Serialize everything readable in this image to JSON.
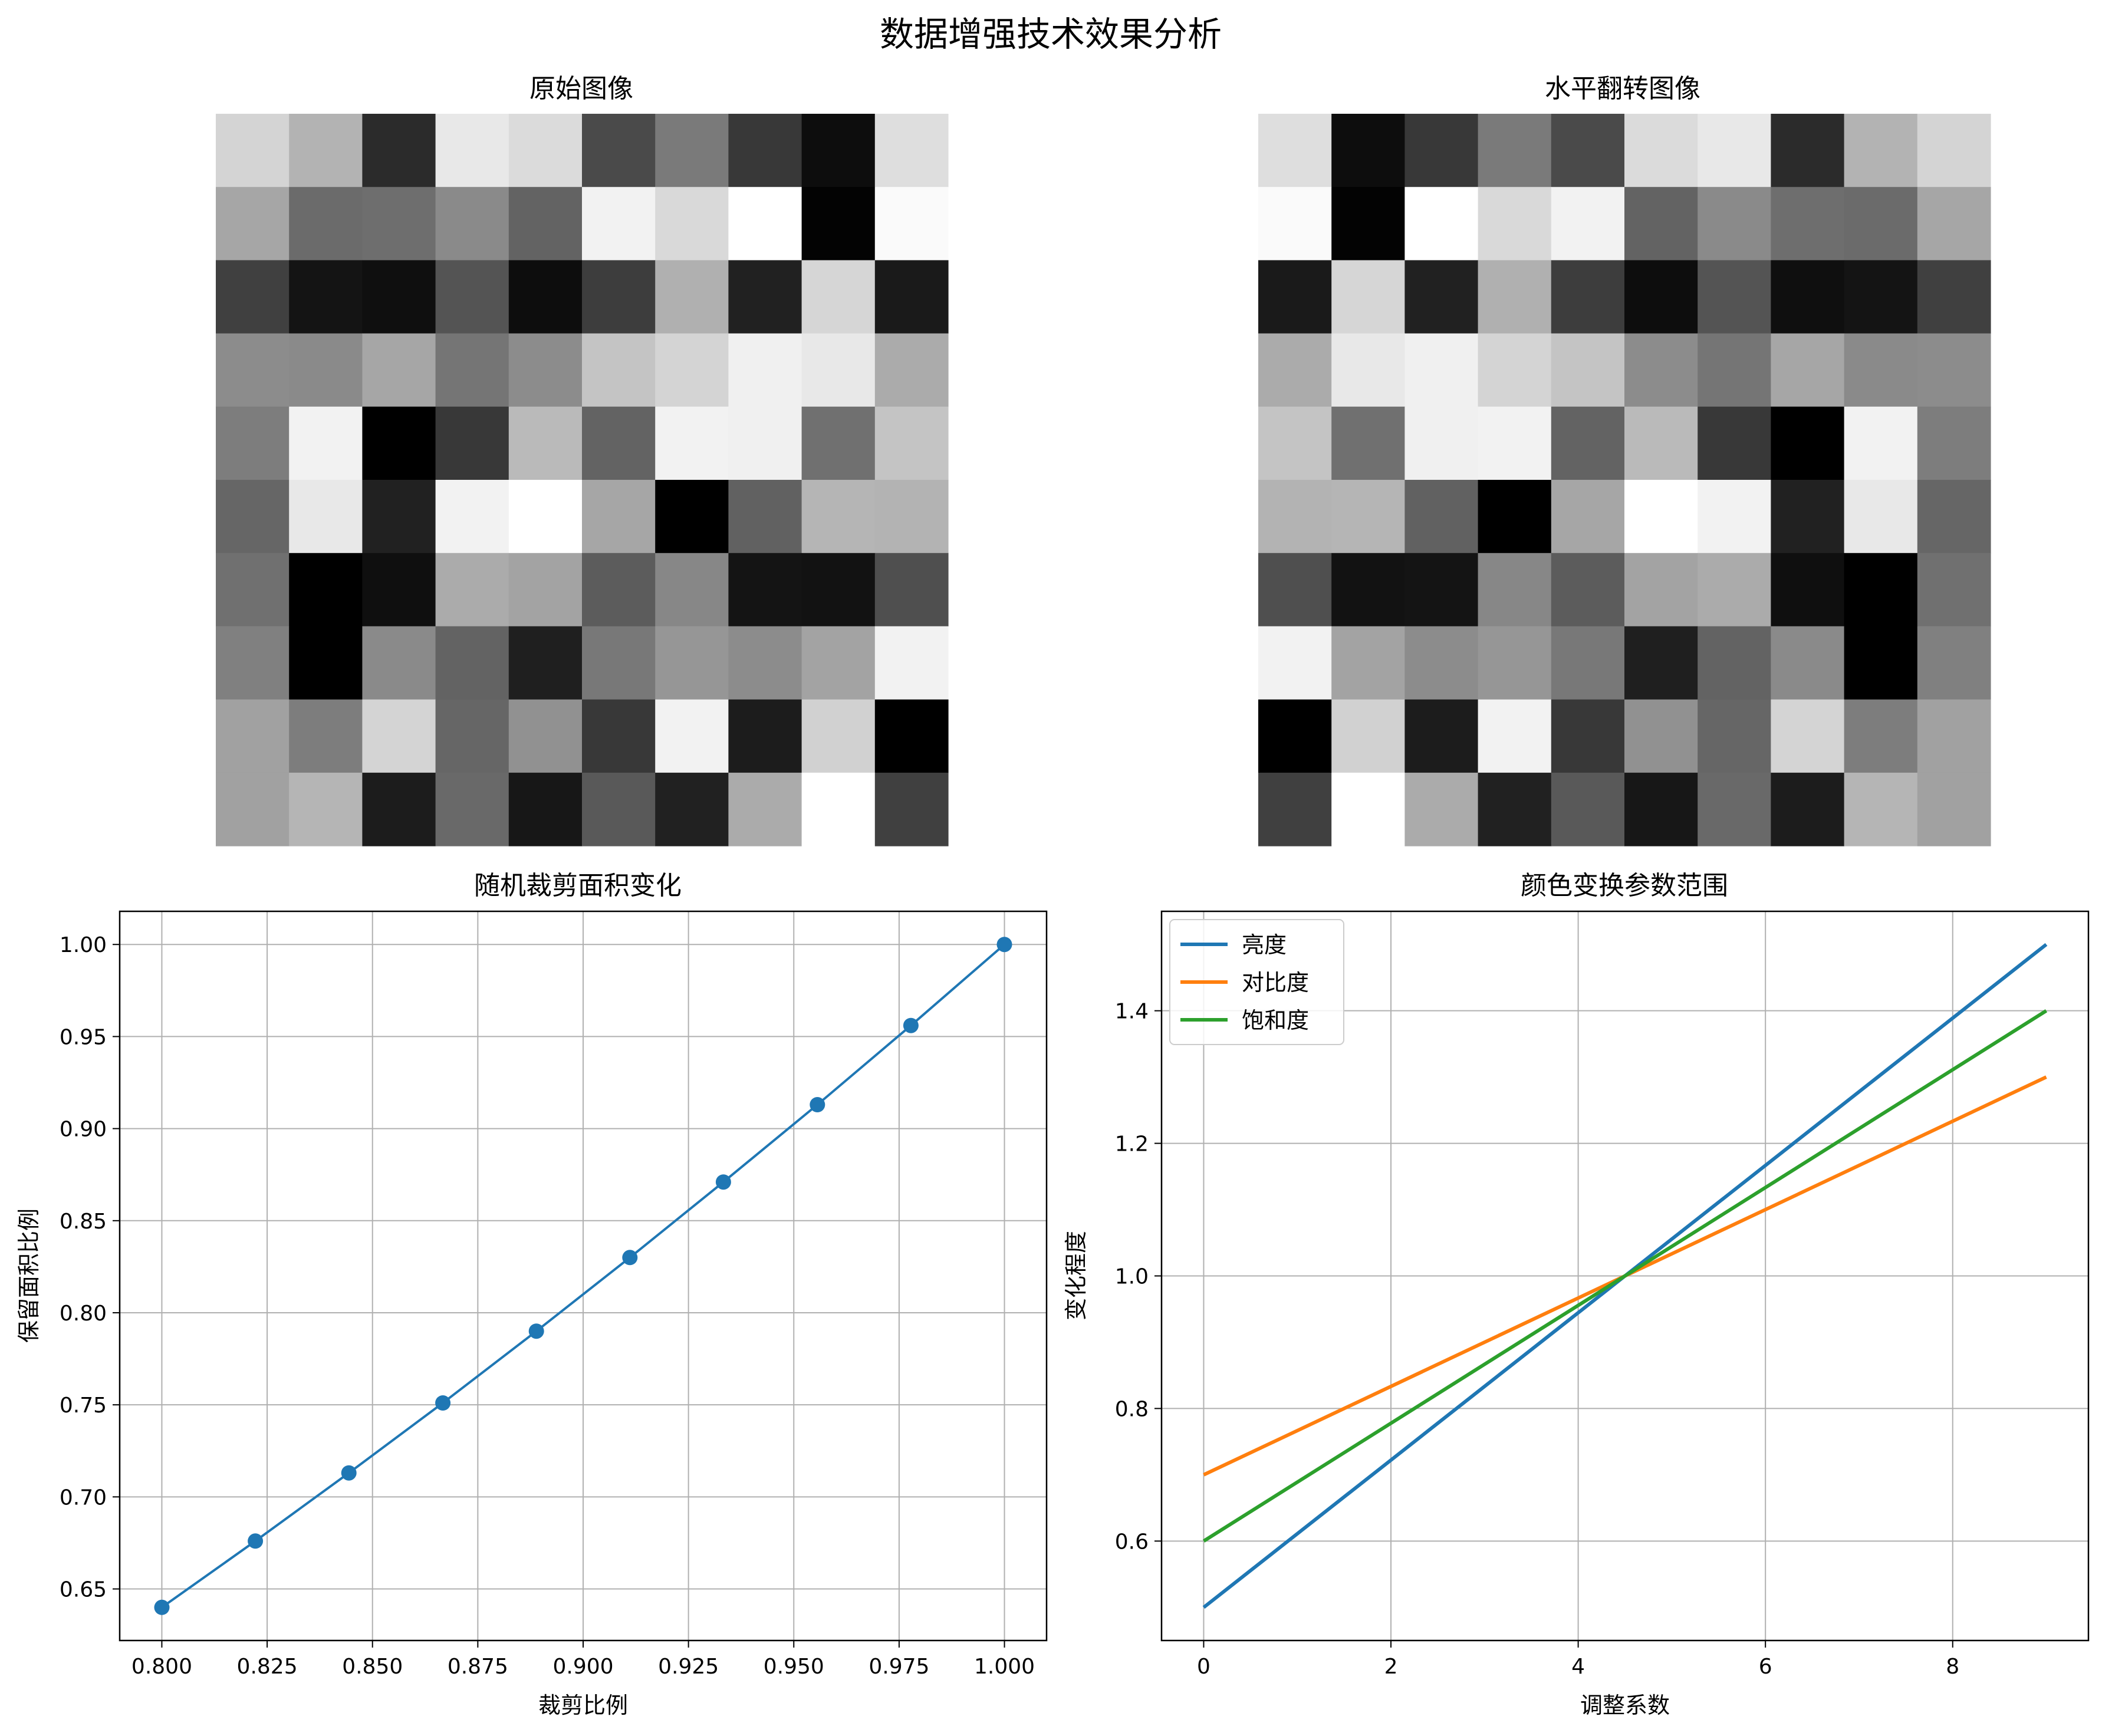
{
  "figure": {
    "title": "数据增强技术效果分析"
  },
  "colors": {
    "blue": "#1f77b4",
    "orange": "#ff7f0e",
    "green": "#2ca02c",
    "grid": "#b0b0b0"
  },
  "chart_data": [
    {
      "type": "heatmap",
      "title": "原始图像",
      "colormap": "gray",
      "axes": "off",
      "rows": 10,
      "cols": 10,
      "values": [
        [
          0.83,
          0.7,
          0.17,
          0.91,
          0.86,
          0.29,
          0.48,
          0.22,
          0.05,
          0.87
        ],
        [
          0.65,
          0.42,
          0.43,
          0.54,
          0.39,
          0.95,
          0.85,
          1.0,
          0.01,
          0.98
        ],
        [
          0.25,
          0.08,
          0.06,
          0.33,
          0.05,
          0.24,
          0.69,
          0.13,
          0.84,
          0.1
        ],
        [
          0.55,
          0.54,
          0.65,
          0.46,
          0.55,
          0.77,
          0.83,
          0.94,
          0.91,
          0.67
        ],
        [
          0.49,
          0.95,
          0.0,
          0.22,
          0.73,
          0.39,
          0.95,
          0.94,
          0.44,
          0.77
        ],
        [
          0.4,
          0.91,
          0.13,
          0.95,
          1.0,
          0.65,
          0.0,
          0.38,
          0.71,
          0.7
        ],
        [
          0.44,
          0.0,
          0.06,
          0.67,
          0.64,
          0.36,
          0.53,
          0.08,
          0.07,
          0.31
        ],
        [
          0.5,
          0.0,
          0.54,
          0.39,
          0.12,
          0.47,
          0.59,
          0.55,
          0.64,
          0.95
        ],
        [
          0.63,
          0.49,
          0.83,
          0.4,
          0.57,
          0.22,
          0.95,
          0.11,
          0.82,
          0.0
        ],
        [
          0.63,
          0.71,
          0.11,
          0.41,
          0.09,
          0.35,
          0.13,
          0.67,
          1.0,
          0.25
        ]
      ]
    },
    {
      "type": "heatmap",
      "title": "水平翻转图像",
      "colormap": "gray",
      "axes": "off",
      "rows": 10,
      "cols": 10,
      "values": [
        [
          0.87,
          0.05,
          0.22,
          0.48,
          0.29,
          0.86,
          0.91,
          0.17,
          0.7,
          0.83
        ],
        [
          0.98,
          0.01,
          1.0,
          0.85,
          0.95,
          0.39,
          0.54,
          0.43,
          0.42,
          0.65
        ],
        [
          0.1,
          0.84,
          0.13,
          0.69,
          0.24,
          0.05,
          0.33,
          0.06,
          0.08,
          0.25
        ],
        [
          0.67,
          0.91,
          0.94,
          0.83,
          0.77,
          0.55,
          0.46,
          0.65,
          0.54,
          0.55
        ],
        [
          0.77,
          0.44,
          0.94,
          0.95,
          0.39,
          0.73,
          0.22,
          0.0,
          0.95,
          0.49
        ],
        [
          0.7,
          0.71,
          0.38,
          0.0,
          0.65,
          1.0,
          0.95,
          0.13,
          0.91,
          0.4
        ],
        [
          0.31,
          0.07,
          0.08,
          0.53,
          0.36,
          0.64,
          0.67,
          0.06,
          0.0,
          0.44
        ],
        [
          0.95,
          0.64,
          0.55,
          0.59,
          0.47,
          0.12,
          0.39,
          0.54,
          0.0,
          0.5
        ],
        [
          0.0,
          0.82,
          0.11,
          0.95,
          0.22,
          0.57,
          0.4,
          0.83,
          0.49,
          0.63
        ],
        [
          0.25,
          1.0,
          0.67,
          0.13,
          0.35,
          0.09,
          0.41,
          0.11,
          0.71,
          0.63
        ]
      ]
    },
    {
      "type": "line",
      "title": "随机裁剪面积变化",
      "xlabel": "裁剪比例",
      "ylabel": "保留面积比例",
      "grid": true,
      "markers": true,
      "xlim": [
        0.79,
        1.01
      ],
      "ylim": [
        0.622,
        1.018
      ],
      "xticks": [
        0.8,
        0.825,
        0.85,
        0.875,
        0.9,
        0.925,
        0.95,
        0.975,
        1.0
      ],
      "xtick_labels": [
        "0.800",
        "0.825",
        "0.850",
        "0.875",
        "0.900",
        "0.925",
        "0.950",
        "0.975",
        "1.000"
      ],
      "yticks": [
        0.65,
        0.7,
        0.75,
        0.8,
        0.85,
        0.9,
        0.95,
        1.0
      ],
      "ytick_labels": [
        "0.65",
        "0.70",
        "0.75",
        "0.80",
        "0.85",
        "0.90",
        "0.95",
        "1.00"
      ],
      "series": [
        {
          "color": "#1f77b4",
          "x": [
            0.8,
            0.8222,
            0.8444,
            0.8667,
            0.8889,
            0.9111,
            0.9333,
            0.9556,
            0.9778,
            1.0
          ],
          "y": [
            0.64,
            0.676,
            0.713,
            0.751,
            0.79,
            0.83,
            0.871,
            0.913,
            0.956,
            1.0
          ]
        }
      ]
    },
    {
      "type": "line",
      "title": "颜色变换参数范围",
      "xlabel": "调整系数",
      "ylabel": "变化程度",
      "grid": true,
      "legend": "upper-left",
      "xlim": [
        -0.45,
        9.45
      ],
      "ylim": [
        0.45,
        1.55
      ],
      "xticks": [
        0,
        2,
        4,
        6,
        8
      ],
      "xtick_labels": [
        "0",
        "2",
        "4",
        "6",
        "8"
      ],
      "yticks": [
        0.6,
        0.8,
        1.0,
        1.2,
        1.4
      ],
      "ytick_labels": [
        "0.6",
        "0.8",
        "1.0",
        "1.2",
        "1.4"
      ],
      "series": [
        {
          "name": "亮度",
          "color": "#1f77b4",
          "x": [
            0,
            9
          ],
          "y": [
            0.5,
            1.5
          ]
        },
        {
          "name": "对比度",
          "color": "#ff7f0e",
          "x": [
            0,
            9
          ],
          "y": [
            0.7,
            1.3
          ]
        },
        {
          "name": "饱和度",
          "color": "#2ca02c",
          "x": [
            0,
            9
          ],
          "y": [
            0.6,
            1.4
          ]
        }
      ]
    }
  ]
}
